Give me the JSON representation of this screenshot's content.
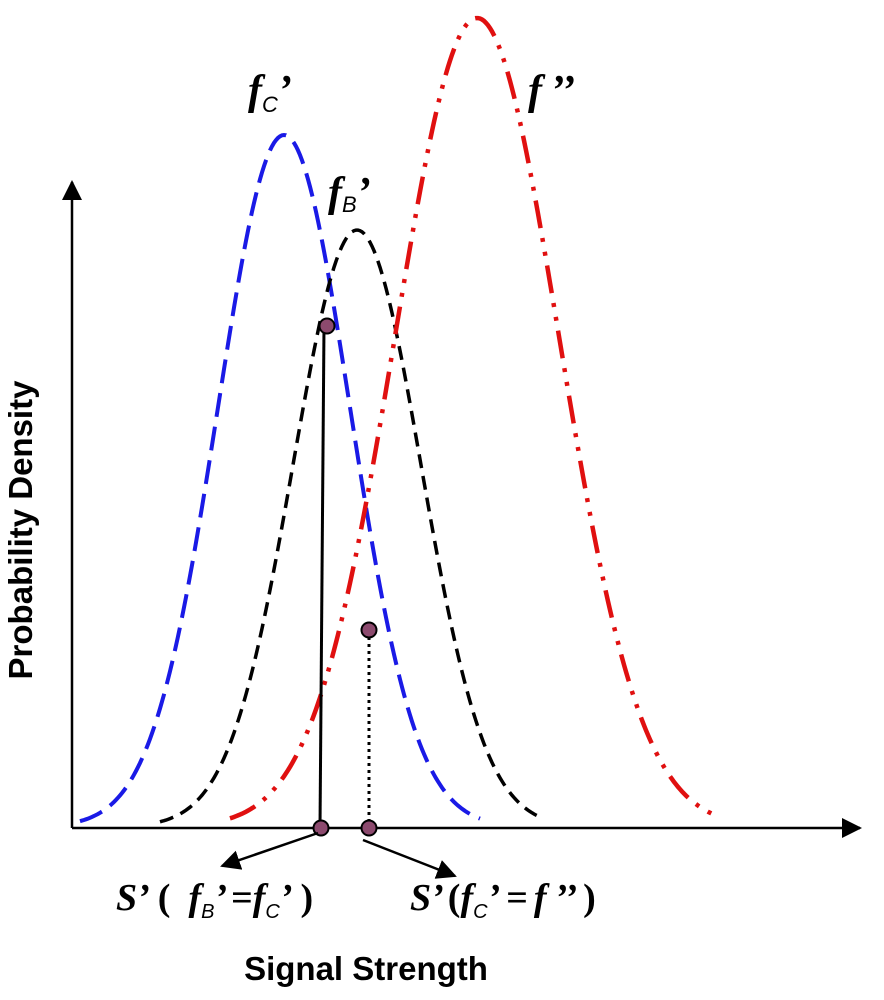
{
  "axes": {
    "x_title": "Signal Strength",
    "y_title": "Probability Density"
  },
  "curves": {
    "fc_prime": {
      "letter": "f",
      "sub": "C",
      "prime": "’",
      "color": "#1a1ae6"
    },
    "fb_prime": {
      "letter": "f",
      "sub": "B",
      "prime": "’",
      "color": "#000000"
    },
    "f_double": {
      "letter": "f",
      "prime": "’’",
      "color": "#e01010"
    }
  },
  "annotations": {
    "left": {
      "s": "S’",
      "open": "(",
      "f1": "f",
      "sub1": "B",
      "prime1": "’",
      "eq": "=",
      "f2": "f",
      "sub2": "C",
      "prime2": "’",
      "close": ")"
    },
    "right": {
      "s": "S’",
      "open": "(",
      "f1": "f",
      "sub1": "C",
      "prime1": "’",
      "eq": "=",
      "f2": "f",
      "prime2": "’’",
      "close": ")"
    }
  },
  "point_color": "#8c4a6e"
}
